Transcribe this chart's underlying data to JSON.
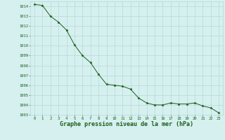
{
  "x": [
    0,
    1,
    2,
    3,
    4,
    5,
    6,
    7,
    8,
    9,
    10,
    11,
    12,
    13,
    14,
    15,
    16,
    17,
    18,
    19,
    20,
    21,
    22,
    23
  ],
  "y": [
    1014.2,
    1014.1,
    1013.0,
    1012.4,
    1011.6,
    1010.1,
    1009.0,
    1008.3,
    1007.1,
    1006.1,
    1006.0,
    1005.9,
    1005.6,
    1004.7,
    1004.2,
    1004.0,
    1004.0,
    1004.2,
    1004.1,
    1004.1,
    1004.2,
    1003.9,
    1003.7,
    1003.2
  ],
  "line_color": "#1a5e1a",
  "marker": "*",
  "marker_size": 2.5,
  "bg_color": "#d6f0ef",
  "grid_color": "#aad4d4",
  "xlabel": "Graphe pression niveau de la mer (hPa)",
  "xlabel_fontsize": 6.0,
  "xlabel_color": "#1a5e1a",
  "tick_label_color": "#1a5e1a",
  "ylim": [
    1003,
    1014.5
  ],
  "xlim": [
    -0.5,
    23.5
  ],
  "yticks": [
    1003,
    1004,
    1005,
    1006,
    1007,
    1008,
    1009,
    1010,
    1011,
    1012,
    1013,
    1014
  ],
  "xticks": [
    0,
    1,
    2,
    3,
    4,
    5,
    6,
    7,
    8,
    9,
    10,
    11,
    12,
    13,
    14,
    15,
    16,
    17,
    18,
    19,
    20,
    21,
    22,
    23
  ],
  "tick_fontsize": 4.0,
  "linewidth": 0.7
}
